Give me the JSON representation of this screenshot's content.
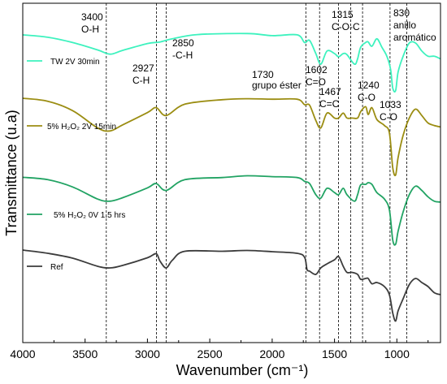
{
  "chart_data": {
    "type": "line",
    "title": "",
    "xlabel": "Wavenumber (cm⁻¹)",
    "ylabel": "Transmittance (u.a)",
    "xlim": [
      4000,
      650
    ],
    "x_reversed": true,
    "x_ticks": [
      4000,
      3500,
      3000,
      2500,
      2000,
      1500,
      1000
    ],
    "y_ticks": "none",
    "grid": false,
    "legend": "inline, left of each curve",
    "series": [
      {
        "name": "TW 2V 30min",
        "color": "#3df2be",
        "points": [
          [
            4000,
            0.45
          ],
          [
            3800,
            0.9
          ],
          [
            3600,
            1.9
          ],
          [
            3400,
            3.3
          ],
          [
            3300,
            4.1
          ],
          [
            3200,
            3.4
          ],
          [
            3000,
            2.1
          ],
          [
            2900,
            1.8
          ],
          [
            2800,
            1.2
          ],
          [
            2600,
            0.4
          ],
          [
            2200,
            0.2
          ],
          [
            2000,
            0.6
          ],
          [
            1800,
            0.45
          ],
          [
            1740,
            1.9
          ],
          [
            1700,
            1.5
          ],
          [
            1650,
            4.0
          ],
          [
            1610,
            6.0
          ],
          [
            1560,
            3.5
          ],
          [
            1500,
            4.0
          ],
          [
            1467,
            4.6
          ],
          [
            1430,
            4.0
          ],
          [
            1400,
            4.2
          ],
          [
            1340,
            6.0
          ],
          [
            1315,
            5.0
          ],
          [
            1290,
            2.8
          ],
          [
            1250,
            1.9
          ],
          [
            1230,
            1.8
          ],
          [
            1200,
            2.6
          ],
          [
            1160,
            1.2
          ],
          [
            1120,
            2.8
          ],
          [
            1080,
            4.5
          ],
          [
            1050,
            7.0
          ],
          [
            1033,
            10.5
          ],
          [
            1010,
            11.0
          ],
          [
            990,
            7.5
          ],
          [
            950,
            4.5
          ],
          [
            900,
            2.0
          ],
          [
            850,
            2.0
          ],
          [
            800,
            3.5
          ],
          [
            750,
            4.5
          ],
          [
            700,
            4.5
          ],
          [
            650,
            5.0
          ]
        ]
      },
      {
        "name": "5% H₂O₂ 2V 15min",
        "color": "#9b8d12",
        "points": [
          [
            4000,
            0.0
          ],
          [
            3800,
            0.6
          ],
          [
            3600,
            2.5
          ],
          [
            3400,
            6.0
          ],
          [
            3300,
            6.6
          ],
          [
            3200,
            5.4
          ],
          [
            3000,
            2.9
          ],
          [
            2930,
            1.9
          ],
          [
            2850,
            3.5
          ],
          [
            2700,
            1.2
          ],
          [
            2400,
            0.3
          ],
          [
            2200,
            0.1
          ],
          [
            2000,
            0.2
          ],
          [
            1800,
            0.2
          ],
          [
            1740,
            1.3
          ],
          [
            1700,
            1.4
          ],
          [
            1650,
            4.5
          ],
          [
            1610,
            6.0
          ],
          [
            1560,
            3.0
          ],
          [
            1500,
            4.0
          ],
          [
            1467,
            4.0
          ],
          [
            1430,
            3.0
          ],
          [
            1400,
            4.0
          ],
          [
            1360,
            4.0
          ],
          [
            1315,
            4.0
          ],
          [
            1290,
            2.7
          ],
          [
            1250,
            1.7
          ],
          [
            1230,
            3.3
          ],
          [
            1200,
            1.9
          ],
          [
            1160,
            4.3
          ],
          [
            1100,
            5.5
          ],
          [
            1060,
            7.0
          ],
          [
            1033,
            14.0
          ],
          [
            1010,
            15.5
          ],
          [
            990,
            12.0
          ],
          [
            950,
            7.5
          ],
          [
            900,
            4.0
          ],
          [
            850,
            2.2
          ],
          [
            800,
            3.5
          ],
          [
            750,
            5.0
          ],
          [
            700,
            5.5
          ],
          [
            650,
            5.8
          ]
        ]
      },
      {
        "name": "5% H₂O₂ 0V 1.5 hrs",
        "color": "#21a363",
        "points": [
          [
            4000,
            0.45
          ],
          [
            3800,
            1.0
          ],
          [
            3600,
            2.7
          ],
          [
            3400,
            5.5
          ],
          [
            3300,
            6.0
          ],
          [
            3200,
            5.2
          ],
          [
            3000,
            2.9
          ],
          [
            2930,
            1.9
          ],
          [
            2850,
            3.5
          ],
          [
            2700,
            1.0
          ],
          [
            2400,
            0.5
          ],
          [
            2200,
            0.1
          ],
          [
            2000,
            0.3
          ],
          [
            1800,
            0.5
          ],
          [
            1740,
            1.4
          ],
          [
            1700,
            1.9
          ],
          [
            1650,
            4.5
          ],
          [
            1610,
            5.3
          ],
          [
            1560,
            3.0
          ],
          [
            1500,
            4.0
          ],
          [
            1467,
            4.5
          ],
          [
            1430,
            3.0
          ],
          [
            1400,
            4.5
          ],
          [
            1340,
            6.0
          ],
          [
            1315,
            4.5
          ],
          [
            1290,
            2.2
          ],
          [
            1250,
            2.1
          ],
          [
            1230,
            1.7
          ],
          [
            1200,
            2.1
          ],
          [
            1160,
            4.0
          ],
          [
            1100,
            5.5
          ],
          [
            1060,
            8.0
          ],
          [
            1033,
            15.0
          ],
          [
            1010,
            16.0
          ],
          [
            990,
            13.0
          ],
          [
            950,
            8.5
          ],
          [
            900,
            4.5
          ],
          [
            850,
            2.5
          ],
          [
            800,
            3.5
          ],
          [
            750,
            5.0
          ],
          [
            700,
            6.0
          ],
          [
            650,
            6.2
          ]
        ]
      },
      {
        "name": "Ref",
        "color": "#3c3c3c",
        "points": [
          [
            4000,
            0.0
          ],
          [
            3800,
            0.8
          ],
          [
            3600,
            2.0
          ],
          [
            3400,
            4.0
          ],
          [
            3300,
            4.4
          ],
          [
            3200,
            3.8
          ],
          [
            3000,
            1.9
          ],
          [
            2930,
            0.9
          ],
          [
            2900,
            2.7
          ],
          [
            2850,
            4.4
          ],
          [
            2800,
            2.5
          ],
          [
            2700,
            0.3
          ],
          [
            2400,
            0.3
          ],
          [
            2200,
            0.1
          ],
          [
            2000,
            0.4
          ],
          [
            1800,
            0.8
          ],
          [
            1740,
            1.8
          ],
          [
            1720,
            4.8
          ],
          [
            1700,
            5.2
          ],
          [
            1650,
            6.0
          ],
          [
            1610,
            4.4
          ],
          [
            1560,
            3.4
          ],
          [
            1500,
            2.4
          ],
          [
            1467,
            1.6
          ],
          [
            1430,
            4.0
          ],
          [
            1400,
            5.5
          ],
          [
            1360,
            5.5
          ],
          [
            1315,
            6.0
          ],
          [
            1290,
            7.2
          ],
          [
            1250,
            7.0
          ],
          [
            1230,
            7.0
          ],
          [
            1200,
            8.3
          ],
          [
            1160,
            8.0
          ],
          [
            1100,
            9.0
          ],
          [
            1060,
            11.0
          ],
          [
            1033,
            15.5
          ],
          [
            1010,
            17.5
          ],
          [
            990,
            15.0
          ],
          [
            950,
            12.0
          ],
          [
            900,
            8.5
          ],
          [
            850,
            7.0
          ],
          [
            800,
            8.0
          ],
          [
            750,
            9.0
          ],
          [
            700,
            10.5
          ],
          [
            650,
            11.0
          ]
        ]
      }
    ],
    "reference_lines": [
      3330,
      2927,
      2850,
      1730,
      1620,
      1467,
      1370,
      1275,
      1055,
      920
    ],
    "annotations": [
      {
        "text": "3400",
        "x": 3400
      },
      {
        "text": "O-H",
        "x": 3400
      },
      {
        "text": "2927",
        "x": 2927
      },
      {
        "text": "C-H",
        "x": 2927
      },
      {
        "text": "2850",
        "x": 2850
      },
      {
        "text": "-C-H",
        "x": 2850
      },
      {
        "text": "1730",
        "x": 1730
      },
      {
        "text": "grupo éster",
        "x": 1730
      },
      {
        "text": "1602",
        "x": 1602
      },
      {
        "text": "C=O",
        "x": 1602
      },
      {
        "text": "1467",
        "x": 1467
      },
      {
        "text": "C=C",
        "x": 1467
      },
      {
        "text": "1315",
        "x": 1315
      },
      {
        "text": "C-O-C",
        "x": 1315
      },
      {
        "text": "1240",
        "x": 1240
      },
      {
        "text": "C-O",
        "x": 1240
      },
      {
        "text": "1033",
        "x": 1033
      },
      {
        "text": "C-O",
        "x": 1033
      },
      {
        "text": "830",
        "x": 830
      },
      {
        "text": "anillo",
        "x": 830
      },
      {
        "text": "aromático",
        "x": 830
      }
    ]
  }
}
